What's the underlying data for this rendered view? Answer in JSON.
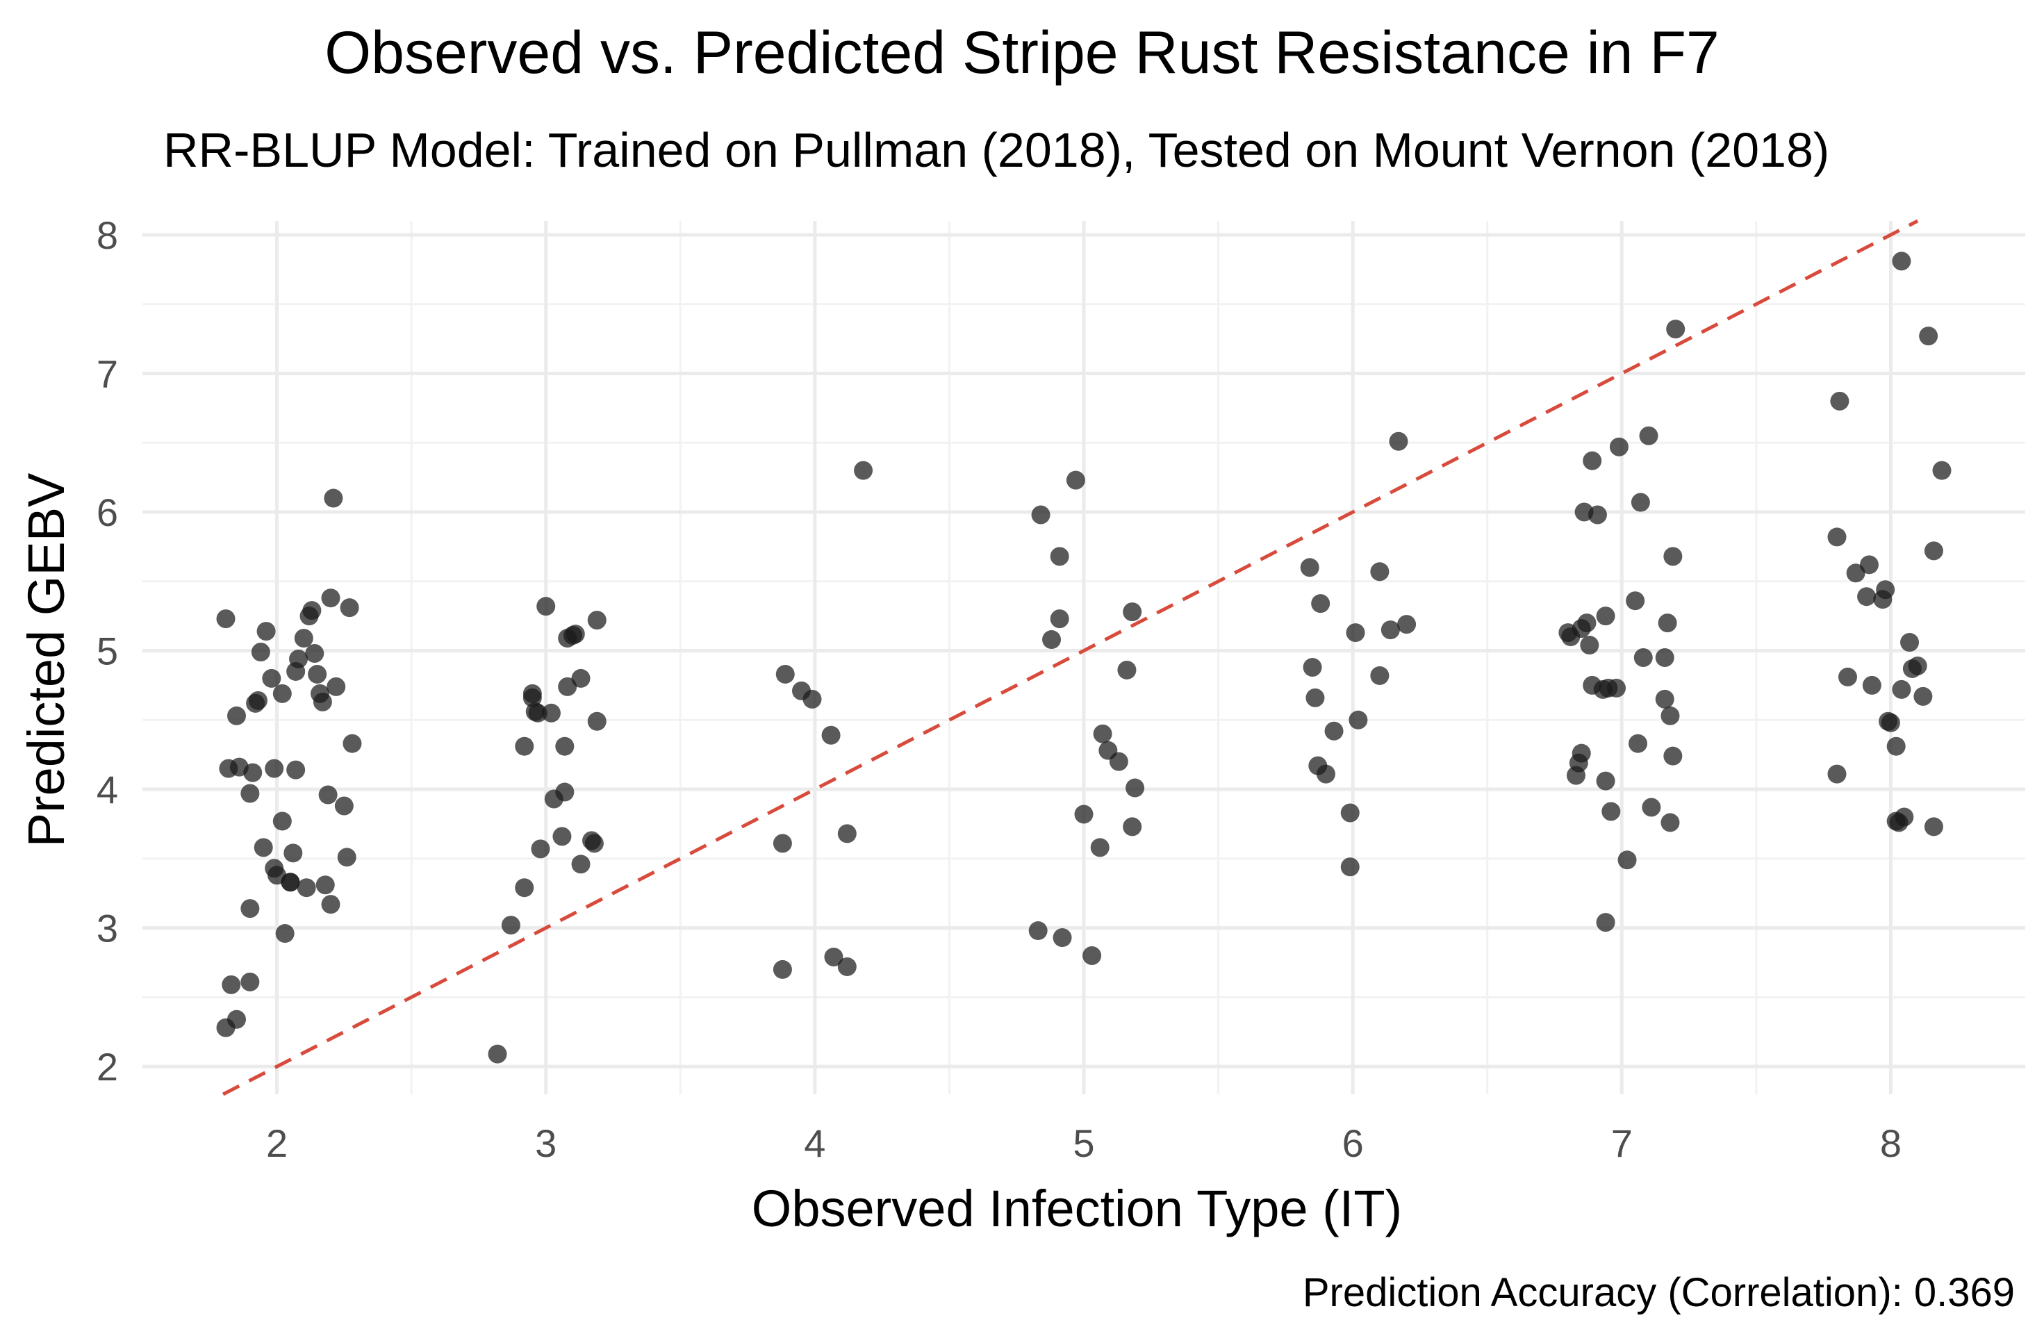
{
  "chart_data": {
    "type": "scatter",
    "title": "Observed vs. Predicted Stripe Rust Resistance in F7",
    "subtitle": "RR-BLUP Model: Trained on Pullman (2018), Tested on Mount Vernon (2018)",
    "xlabel": "Observed Infection Type (IT)",
    "ylabel": "Predicted GEBV",
    "caption": "Prediction Accuracy (Correlation): 0.369",
    "xlim": [
      1.5,
      8.5
    ],
    "ylim": [
      1.8,
      8.1
    ],
    "x_ticks": [
      "2",
      "3",
      "4",
      "5",
      "6",
      "7",
      "8"
    ],
    "y_ticks": [
      "2",
      "3",
      "4",
      "5",
      "6",
      "7",
      "8"
    ],
    "reference_line": {
      "slope": 1,
      "intercept": 0,
      "style": "dashed",
      "color": "#d84b3c"
    },
    "grid": true,
    "point_color": "#1a1a1a",
    "points": [
      {
        "x": 1.81,
        "y": 5.23
      },
      {
        "x": 1.82,
        "y": 4.15
      },
      {
        "x": 1.85,
        "y": 4.53
      },
      {
        "x": 1.86,
        "y": 4.16
      },
      {
        "x": 1.9,
        "y": 3.97
      },
      {
        "x": 1.91,
        "y": 4.12
      },
      {
        "x": 1.92,
        "y": 4.62
      },
      {
        "x": 1.93,
        "y": 4.64
      },
      {
        "x": 1.94,
        "y": 4.99
      },
      {
        "x": 1.95,
        "y": 3.58
      },
      {
        "x": 1.96,
        "y": 5.14
      },
      {
        "x": 1.98,
        "y": 4.8
      },
      {
        "x": 1.99,
        "y": 3.43
      },
      {
        "x": 2.0,
        "y": 3.38
      },
      {
        "x": 1.99,
        "y": 4.15
      },
      {
        "x": 2.02,
        "y": 4.69
      },
      {
        "x": 2.02,
        "y": 3.77
      },
      {
        "x": 2.05,
        "y": 3.33
      },
      {
        "x": 2.06,
        "y": 3.54
      },
      {
        "x": 2.07,
        "y": 4.14
      },
      {
        "x": 2.07,
        "y": 4.85
      },
      {
        "x": 2.08,
        "y": 4.94
      },
      {
        "x": 2.1,
        "y": 5.09
      },
      {
        "x": 2.11,
        "y": 3.29
      },
      {
        "x": 2.12,
        "y": 5.25
      },
      {
        "x": 2.13,
        "y": 5.29
      },
      {
        "x": 2.14,
        "y": 4.98
      },
      {
        "x": 2.15,
        "y": 4.83
      },
      {
        "x": 2.16,
        "y": 4.69
      },
      {
        "x": 2.17,
        "y": 4.63
      },
      {
        "x": 2.18,
        "y": 3.31
      },
      {
        "x": 2.19,
        "y": 3.96
      },
      {
        "x": 2.2,
        "y": 3.17
      },
      {
        "x": 2.2,
        "y": 5.38
      },
      {
        "x": 2.21,
        "y": 6.1
      },
      {
        "x": 2.22,
        "y": 4.74
      },
      {
        "x": 2.25,
        "y": 3.88
      },
      {
        "x": 2.26,
        "y": 3.51
      },
      {
        "x": 2.27,
        "y": 5.31
      },
      {
        "x": 2.28,
        "y": 4.33
      },
      {
        "x": 1.81,
        "y": 2.28
      },
      {
        "x": 1.83,
        "y": 2.59
      },
      {
        "x": 1.85,
        "y": 2.34
      },
      {
        "x": 1.9,
        "y": 2.61
      },
      {
        "x": 1.9,
        "y": 3.14
      },
      {
        "x": 2.03,
        "y": 2.96
      },
      {
        "x": 2.05,
        "y": 3.33
      },
      {
        "x": 2.82,
        "y": 2.09
      },
      {
        "x": 2.87,
        "y": 3.02
      },
      {
        "x": 2.92,
        "y": 3.29
      },
      {
        "x": 2.92,
        "y": 4.31
      },
      {
        "x": 2.95,
        "y": 4.66
      },
      {
        "x": 2.95,
        "y": 4.69
      },
      {
        "x": 2.96,
        "y": 4.56
      },
      {
        "x": 2.97,
        "y": 4.55
      },
      {
        "x": 2.98,
        "y": 3.57
      },
      {
        "x": 3.0,
        "y": 5.32
      },
      {
        "x": 3.02,
        "y": 4.55
      },
      {
        "x": 3.03,
        "y": 3.93
      },
      {
        "x": 3.06,
        "y": 3.66
      },
      {
        "x": 3.07,
        "y": 3.98
      },
      {
        "x": 3.07,
        "y": 4.31
      },
      {
        "x": 3.08,
        "y": 4.74
      },
      {
        "x": 3.08,
        "y": 5.09
      },
      {
        "x": 3.1,
        "y": 5.11
      },
      {
        "x": 3.11,
        "y": 5.12
      },
      {
        "x": 3.13,
        "y": 4.8
      },
      {
        "x": 3.13,
        "y": 3.46
      },
      {
        "x": 3.18,
        "y": 3.61
      },
      {
        "x": 3.17,
        "y": 3.63
      },
      {
        "x": 3.19,
        "y": 4.49
      },
      {
        "x": 3.19,
        "y": 5.22
      },
      {
        "x": 3.88,
        "y": 3.61
      },
      {
        "x": 3.88,
        "y": 2.7
      },
      {
        "x": 3.89,
        "y": 4.83
      },
      {
        "x": 3.95,
        "y": 4.71
      },
      {
        "x": 3.99,
        "y": 4.65
      },
      {
        "x": 4.06,
        "y": 4.39
      },
      {
        "x": 4.07,
        "y": 2.79
      },
      {
        "x": 4.12,
        "y": 3.68
      },
      {
        "x": 4.12,
        "y": 2.72
      },
      {
        "x": 4.18,
        "y": 6.3
      },
      {
        "x": 4.83,
        "y": 2.98
      },
      {
        "x": 4.84,
        "y": 5.98
      },
      {
        "x": 4.88,
        "y": 5.08
      },
      {
        "x": 4.91,
        "y": 5.68
      },
      {
        "x": 4.91,
        "y": 5.23
      },
      {
        "x": 4.92,
        "y": 2.93
      },
      {
        "x": 4.97,
        "y": 6.23
      },
      {
        "x": 5.0,
        "y": 3.82
      },
      {
        "x": 5.03,
        "y": 2.8
      },
      {
        "x": 5.06,
        "y": 3.58
      },
      {
        "x": 5.07,
        "y": 4.4
      },
      {
        "x": 5.09,
        "y": 4.28
      },
      {
        "x": 5.13,
        "y": 4.2
      },
      {
        "x": 5.16,
        "y": 4.86
      },
      {
        "x": 5.18,
        "y": 5.28
      },
      {
        "x": 5.18,
        "y": 3.73
      },
      {
        "x": 5.19,
        "y": 4.01
      },
      {
        "x": 5.84,
        "y": 5.6
      },
      {
        "x": 5.85,
        "y": 4.88
      },
      {
        "x": 5.86,
        "y": 4.66
      },
      {
        "x": 5.87,
        "y": 4.17
      },
      {
        "x": 5.88,
        "y": 5.34
      },
      {
        "x": 5.9,
        "y": 4.11
      },
      {
        "x": 5.93,
        "y": 4.42
      },
      {
        "x": 5.99,
        "y": 3.83
      },
      {
        "x": 5.99,
        "y": 3.44
      },
      {
        "x": 6.01,
        "y": 5.13
      },
      {
        "x": 6.02,
        "y": 4.5
      },
      {
        "x": 6.1,
        "y": 5.57
      },
      {
        "x": 6.1,
        "y": 4.82
      },
      {
        "x": 6.14,
        "y": 5.15
      },
      {
        "x": 6.17,
        "y": 6.51
      },
      {
        "x": 6.2,
        "y": 5.19
      },
      {
        "x": 6.8,
        "y": 5.13
      },
      {
        "x": 6.81,
        "y": 5.1
      },
      {
        "x": 6.83,
        "y": 4.1
      },
      {
        "x": 6.84,
        "y": 4.19
      },
      {
        "x": 6.85,
        "y": 4.26
      },
      {
        "x": 6.85,
        "y": 5.16
      },
      {
        "x": 6.87,
        "y": 5.2
      },
      {
        "x": 6.86,
        "y": 6.0
      },
      {
        "x": 6.88,
        "y": 5.04
      },
      {
        "x": 6.89,
        "y": 4.75
      },
      {
        "x": 6.89,
        "y": 6.37
      },
      {
        "x": 6.91,
        "y": 5.98
      },
      {
        "x": 6.93,
        "y": 4.72
      },
      {
        "x": 6.94,
        "y": 4.06
      },
      {
        "x": 6.94,
        "y": 5.25
      },
      {
        "x": 6.94,
        "y": 3.04
      },
      {
        "x": 6.95,
        "y": 4.73
      },
      {
        "x": 6.96,
        "y": 3.84
      },
      {
        "x": 6.98,
        "y": 4.73
      },
      {
        "x": 6.99,
        "y": 6.47
      },
      {
        "x": 7.02,
        "y": 3.49
      },
      {
        "x": 7.05,
        "y": 5.36
      },
      {
        "x": 7.06,
        "y": 4.33
      },
      {
        "x": 7.07,
        "y": 6.07
      },
      {
        "x": 7.08,
        "y": 4.95
      },
      {
        "x": 7.1,
        "y": 6.55
      },
      {
        "x": 7.11,
        "y": 3.87
      },
      {
        "x": 7.16,
        "y": 4.95
      },
      {
        "x": 7.16,
        "y": 4.65
      },
      {
        "x": 7.17,
        "y": 5.2
      },
      {
        "x": 7.18,
        "y": 3.76
      },
      {
        "x": 7.18,
        "y": 4.53
      },
      {
        "x": 7.19,
        "y": 4.24
      },
      {
        "x": 7.19,
        "y": 5.68
      },
      {
        "x": 7.2,
        "y": 7.32
      },
      {
        "x": 7.8,
        "y": 5.82
      },
      {
        "x": 7.8,
        "y": 4.11
      },
      {
        "x": 7.81,
        "y": 6.8
      },
      {
        "x": 7.84,
        "y": 4.81
      },
      {
        "x": 7.87,
        "y": 5.56
      },
      {
        "x": 7.91,
        "y": 5.39
      },
      {
        "x": 7.92,
        "y": 5.62
      },
      {
        "x": 7.93,
        "y": 4.75
      },
      {
        "x": 7.97,
        "y": 5.37
      },
      {
        "x": 7.98,
        "y": 5.44
      },
      {
        "x": 7.99,
        "y": 4.49
      },
      {
        "x": 8.0,
        "y": 4.48
      },
      {
        "x": 8.02,
        "y": 3.77
      },
      {
        "x": 8.02,
        "y": 4.31
      },
      {
        "x": 8.03,
        "y": 3.76
      },
      {
        "x": 8.04,
        "y": 4.72
      },
      {
        "x": 8.05,
        "y": 3.8
      },
      {
        "x": 8.04,
        "y": 7.81
      },
      {
        "x": 8.07,
        "y": 5.06
      },
      {
        "x": 8.08,
        "y": 4.87
      },
      {
        "x": 8.1,
        "y": 4.89
      },
      {
        "x": 8.12,
        "y": 4.67
      },
      {
        "x": 8.14,
        "y": 7.27
      },
      {
        "x": 8.16,
        "y": 5.72
      },
      {
        "x": 8.16,
        "y": 3.73
      },
      {
        "x": 8.19,
        "y": 6.3
      }
    ]
  }
}
